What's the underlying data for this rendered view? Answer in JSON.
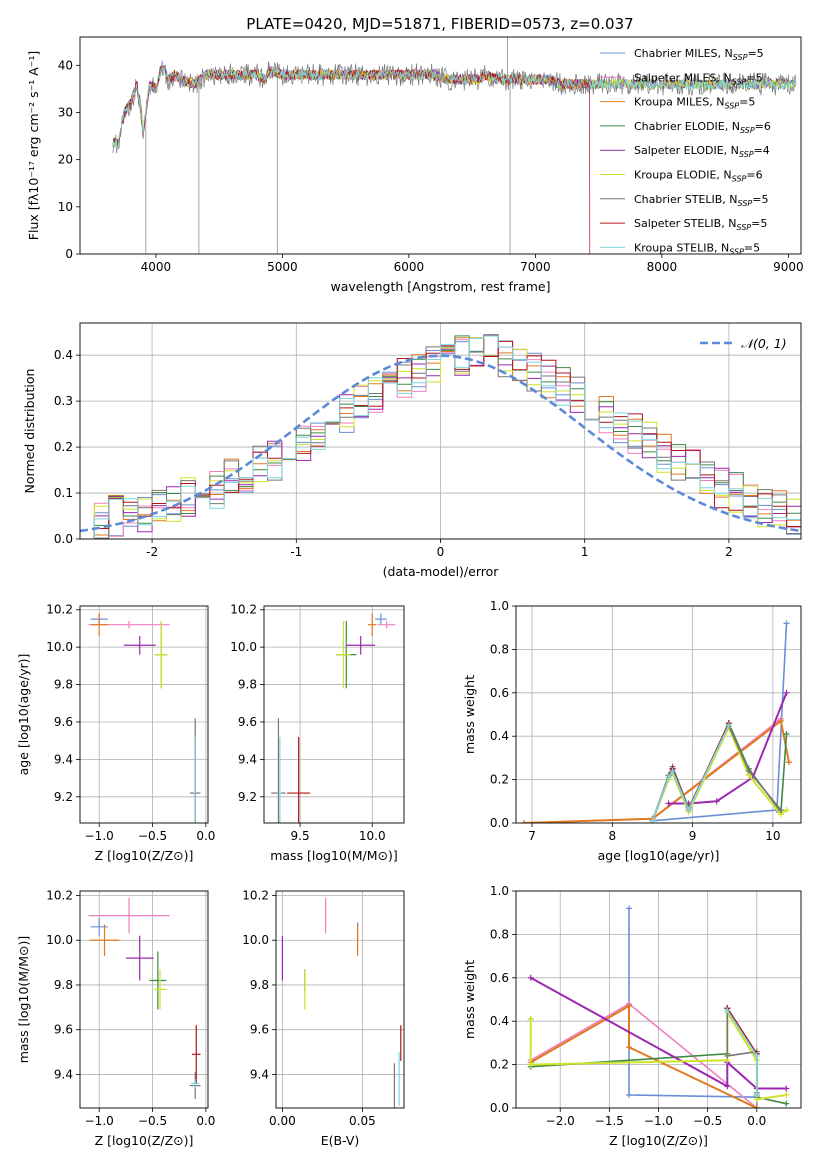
{
  "figure_title": "PLATE=0420, MJD=51871, FIBERID=0573, z=0.037",
  "colors": {
    "series": [
      "#6a8fd8",
      "#f07fc0",
      "#e07a1e",
      "#3f8a46",
      "#9b27b0",
      "#cfe32a",
      "#777777",
      "#b1141a",
      "#7fd6e0"
    ],
    "normal_curve": "#5b8bd6"
  },
  "legend": {
    "prefix": [
      "Chabrier MILES, N",
      "Salpeter MILES, N",
      "Kroupa MILES, N",
      "Chabrier ELODIE, N",
      "Salpeter ELODIE, N",
      "Kroupa ELODIE, N",
      "Chabrier STELIB, N",
      "Salpeter STELIB, N",
      "Kroupa STELIB, N"
    ],
    "sub": "SSP",
    "suffix": [
      "=5",
      "=5",
      "=5",
      "=6",
      "=4",
      "=6",
      "=5",
      "=5",
      "=5"
    ]
  },
  "chart_data": [
    {
      "id": "spectrum",
      "type": "line",
      "xlabel": "wavelength [Angstrom, rest frame]",
      "ylabel": "Flux [fλ10⁻¹⁷ erg cm⁻² s⁻¹ A⁻¹]",
      "xlim": [
        3400,
        9100
      ],
      "ylim": [
        0,
        46
      ],
      "xticks": [
        4000,
        5000,
        6000,
        7000,
        8000,
        9000
      ],
      "yticks": [
        0,
        10,
        20,
        30,
        40
      ],
      "x": [
        3650,
        3700,
        3750,
        3800,
        3850,
        3900,
        3950,
        4000,
        4050,
        4100,
        4150,
        4200,
        4300,
        4400,
        4500,
        4600,
        4700,
        4800,
        4860,
        4900,
        5000,
        5100,
        5200,
        5300,
        5400,
        5500,
        5600,
        5700,
        5800,
        5900,
        6000,
        6100,
        6200,
        6300,
        6400,
        6500,
        6563,
        6600,
        6700,
        6800,
        6900,
        7000,
        7100,
        7200,
        7300,
        7400,
        7500,
        7600,
        7700,
        7800,
        7900,
        8000,
        8200,
        8400,
        8600,
        8800,
        9000,
        9100
      ],
      "y": [
        24,
        23,
        30,
        32,
        36,
        26,
        36,
        35,
        40,
        37,
        38,
        37,
        36,
        38,
        38,
        38,
        38,
        38,
        37,
        39,
        38,
        38,
        38,
        38,
        38,
        38,
        38,
        38,
        38,
        38,
        38,
        38,
        38,
        37,
        37,
        37,
        37,
        38,
        37,
        37,
        37,
        37,
        37,
        36,
        36,
        36,
        36,
        36,
        36,
        36,
        36,
        36,
        36,
        36,
        36,
        36,
        36,
        36
      ],
      "series_note": "all nine model fits overlap the observed spectrum; Salpeter STELIB drops to 0 beyond 7430, Kroupa MILES/Salpeter MILES truncate near 7430",
      "series_names": [
        "Chabrier MILES",
        "Salpeter MILES",
        "Kroupa MILES",
        "Chabrier ELODIE",
        "Salpeter ELODIE",
        "Kroupa ELODIE",
        "Chabrier STELIB",
        "Salpeter STELIB",
        "Kroupa STELIB"
      ],
      "ssp": [
        5,
        5,
        5,
        6,
        4,
        6,
        5,
        5,
        5
      ]
    },
    {
      "id": "residuals",
      "type": "histogram",
      "xlabel": "(data-model)/error",
      "ylabel": "Normed distribution",
      "xlim": [
        -2.5,
        2.5
      ],
      "ylim": [
        0,
        0.47
      ],
      "xticks": [
        -2,
        -1,
        0,
        1,
        2
      ],
      "yticks": [
        0.0,
        0.1,
        0.2,
        0.3,
        0.4
      ],
      "bin_width": 0.1,
      "legend_label": "𝒩(0, 1)",
      "reference": {
        "type": "normal",
        "mean": 0,
        "sigma": 1
      },
      "envelope": [
        0.03,
        0.04,
        0.05,
        0.05,
        0.06,
        0.07,
        0.08,
        0.09,
        0.1,
        0.11,
        0.13,
        0.14,
        0.16,
        0.17,
        0.19,
        0.21,
        0.23,
        0.25,
        0.27,
        0.29,
        0.31,
        0.33,
        0.35,
        0.36,
        0.38,
        0.39,
        0.4,
        0.4,
        0.4,
        0.39,
        0.38,
        0.36,
        0.35,
        0.33,
        0.31,
        0.29,
        0.27,
        0.25,
        0.23,
        0.21,
        0.19,
        0.17,
        0.15,
        0.13,
        0.11,
        0.1,
        0.08,
        0.07,
        0.06,
        0.05
      ]
    },
    {
      "id": "age_vs_Z",
      "type": "errorbar",
      "xlabel": "Z [log10(Z/Z⊙)]",
      "ylabel": "age  [log10(age/yr)]",
      "xlim": [
        -1.18,
        0.02
      ],
      "ylim": [
        9.06,
        10.22
      ],
      "xticks": [
        -1.0,
        -0.5,
        0.0
      ],
      "xticklabels": [
        "−1.0",
        "−0.5",
        "0.0"
      ],
      "yticks": [
        9.2,
        9.4,
        9.6,
        9.8,
        10.0,
        10.2
      ],
      "points": [
        {
          "x": -1.0,
          "y": 10.15,
          "xerr": 0.08,
          "yerr": 0.03
        },
        {
          "x": -0.72,
          "y": 10.12,
          "xerr": 0.38,
          "yerr": 0.02
        },
        {
          "x": -1.0,
          "y": 10.12,
          "xerr": 0.08,
          "yerr": 0.06
        },
        {
          "x": -0.42,
          "y": 9.96,
          "xerr": 0.06,
          "yerr": 0.18
        },
        {
          "x": -0.62,
          "y": 10.01,
          "xerr": 0.15,
          "yerr": 0.05
        },
        {
          "x": -0.42,
          "y": 9.96,
          "xerr": 0.06,
          "yerr": 0.18
        },
        {
          "x": -0.1,
          "y": 9.22,
          "xerr": 0.05,
          "yerr": 0.4
        },
        {
          "x": -0.1,
          "y": 9.22,
          "xerr": 0.01,
          "yerr": 0.3
        },
        {
          "x": -0.1,
          "y": 9.22,
          "xerr": 0.01,
          "yerr": 0.3
        }
      ]
    },
    {
      "id": "age_vs_mass",
      "type": "errorbar",
      "xlabel": "mass [log10(M/M⊙)]",
      "ylabel": "",
      "xlim": [
        9.25,
        10.22
      ],
      "ylim": [
        9.06,
        10.22
      ],
      "xticks": [
        9.5,
        10.0
      ],
      "xticklabels": [
        "9.5",
        "10.0"
      ],
      "yticks": [
        9.2,
        9.4,
        9.6,
        9.8,
        10.0,
        10.2
      ],
      "points": [
        {
          "x": 10.06,
          "y": 10.15,
          "xerr": 0.04,
          "yerr": 0.03
        },
        {
          "x": 10.1,
          "y": 10.12,
          "xerr": 0.06,
          "yerr": 0.02
        },
        {
          "x": 10.0,
          "y": 10.12,
          "xerr": 0.03,
          "yerr": 0.06
        },
        {
          "x": 9.82,
          "y": 9.96,
          "xerr": 0.07,
          "yerr": 0.18
        },
        {
          "x": 9.92,
          "y": 10.01,
          "xerr": 0.1,
          "yerr": 0.05
        },
        {
          "x": 9.8,
          "y": 9.96,
          "xerr": 0.05,
          "yerr": 0.18
        },
        {
          "x": 9.35,
          "y": 9.22,
          "xerr": 0.05,
          "yerr": 0.4
        },
        {
          "x": 9.49,
          "y": 9.22,
          "xerr": 0.08,
          "yerr": 0.3
        },
        {
          "x": 9.36,
          "y": 9.22,
          "xerr": 0.01,
          "yerr": 0.3
        }
      ]
    },
    {
      "id": "weight_vs_age",
      "type": "line",
      "xlabel": "age  [log10(age/yr)]",
      "ylabel": "mass weight",
      "xlim": [
        6.8,
        10.35
      ],
      "ylim": [
        0,
        1.0
      ],
      "xticks": [
        7,
        8,
        9,
        10
      ],
      "xticklabels": [
        "7",
        "8",
        "9",
        "10"
      ],
      "yticks": [
        0.0,
        0.2,
        0.4,
        0.6,
        0.8,
        1.0
      ],
      "series": [
        {
          "x": [
            8.5,
            10.05,
            10.17
          ],
          "y": [
            0.01,
            0.06,
            0.92
          ]
        },
        {
          "x": [
            6.9,
            8.5,
            10.1
          ],
          "y": [
            0.0,
            0.02,
            0.48
          ]
        },
        {
          "x": [
            6.9,
            8.5,
            10.1,
            10.2
          ],
          "y": [
            0.0,
            0.02,
            0.47,
            0.28
          ]
        },
        {
          "x": [
            8.5,
            8.7,
            8.75,
            8.95,
            9.45,
            9.7,
            10.1,
            10.17
          ],
          "y": [
            0.01,
            0.21,
            0.25,
            0.06,
            0.46,
            0.25,
            0.05,
            0.41
          ]
        },
        {
          "x": [
            8.7,
            8.95,
            9.3,
            9.75,
            10.17
          ],
          "y": [
            0.09,
            0.09,
            0.1,
            0.21,
            0.6
          ]
        },
        {
          "x": [
            8.5,
            8.7,
            8.75,
            8.95,
            9.45,
            9.7,
            10.1,
            10.17
          ],
          "y": [
            0.01,
            0.2,
            0.23,
            0.05,
            0.44,
            0.22,
            0.04,
            0.06
          ]
        },
        {
          "x": [
            8.5,
            8.7,
            8.75,
            8.95,
            9.45,
            9.7,
            10.1
          ],
          "y": [
            0.01,
            0.22,
            0.26,
            0.07,
            0.45,
            0.24,
            0.06
          ]
        },
        {
          "x": [
            8.5,
            8.7,
            8.75,
            8.95,
            9.45
          ],
          "y": [
            0.01,
            0.21,
            0.25,
            0.06,
            0.46
          ]
        },
        {
          "x": [
            8.5,
            8.7,
            8.75,
            8.95,
            9.45
          ],
          "y": [
            0.01,
            0.21,
            0.24,
            0.06,
            0.45
          ]
        }
      ]
    },
    {
      "id": "mass_vs_Z",
      "type": "errorbar",
      "xlabel": "Z [log10(Z/Z⊙)]",
      "ylabel": "mass [log10(M/M⊙)]",
      "xlim": [
        -1.18,
        0.02
      ],
      "ylim": [
        9.25,
        10.22
      ],
      "xticks": [
        -1.0,
        -0.5,
        0.0
      ],
      "xticklabels": [
        "−1.0",
        "−0.5",
        "0.0"
      ],
      "yticks": [
        9.4,
        9.6,
        9.8,
        10.0,
        10.2
      ],
      "points": [
        {
          "x": -1.0,
          "y": 10.06,
          "xerr": 0.08,
          "yerr": 0.04
        },
        {
          "x": -0.72,
          "y": 10.11,
          "xerr": 0.38,
          "yerr": 0.08
        },
        {
          "x": -0.95,
          "y": 10.0,
          "xerr": 0.14,
          "yerr": 0.07
        },
        {
          "x": -0.45,
          "y": 9.82,
          "xerr": 0.08,
          "yerr": 0.13
        },
        {
          "x": -0.62,
          "y": 9.92,
          "xerr": 0.13,
          "yerr": 0.1
        },
        {
          "x": -0.43,
          "y": 9.78,
          "xerr": 0.06,
          "yerr": 0.09
        },
        {
          "x": -0.1,
          "y": 9.35,
          "xerr": 0.05,
          "yerr": 0.06
        },
        {
          "x": -0.09,
          "y": 9.49,
          "xerr": 0.04,
          "yerr": 0.13
        },
        {
          "x": -0.1,
          "y": 9.36,
          "xerr": 0.04,
          "yerr": 0.02
        }
      ]
    },
    {
      "id": "mass_vs_ebv",
      "type": "errorbar",
      "xlabel": "E(B-V)",
      "ylabel": "",
      "xlim": [
        -0.004,
        0.076
      ],
      "ylim": [
        9.25,
        10.22
      ],
      "xticks": [
        0.0,
        0.05
      ],
      "xticklabels": [
        "0.00",
        "0.05"
      ],
      "yticks": [
        9.4,
        9.6,
        9.8,
        10.0,
        10.2
      ],
      "points": [
        {
          "x": 0.047,
          "y": 10.04,
          "xerr": 0,
          "yerr": 0.04
        },
        {
          "x": 0.027,
          "y": 10.11,
          "xerr": 0,
          "yerr": 0.08
        },
        {
          "x": 0.047,
          "y": 10.0,
          "xerr": 0,
          "yerr": 0.07
        },
        {
          "x": 0.014,
          "y": 9.82,
          "xerr": 0,
          "yerr": 0.05
        },
        {
          "x": 0.0,
          "y": 9.92,
          "xerr": 0,
          "yerr": 0.1
        },
        {
          "x": 0.014,
          "y": 9.78,
          "xerr": 0,
          "yerr": 0.09
        },
        {
          "x": 0.07,
          "y": 9.35,
          "xerr": 0,
          "yerr": 0.1
        },
        {
          "x": 0.074,
          "y": 9.54,
          "xerr": 0,
          "yerr": 0.08
        },
        {
          "x": 0.073,
          "y": 9.38,
          "xerr": 0,
          "yerr": 0.12
        }
      ]
    },
    {
      "id": "weight_vs_Z",
      "type": "line",
      "xlabel": "Z [log10(Z/Z⊙)]",
      "ylabel": "mass weight",
      "xlim": [
        -2.45,
        0.45
      ],
      "ylim": [
        0,
        1.0
      ],
      "xticks": [
        -2.0,
        -1.5,
        -1.0,
        -0.5,
        0.0
      ],
      "xticklabels": [
        "−2.0",
        "−1.5",
        "−1.0",
        "−0.5",
        "0.0"
      ],
      "yticks": [
        0.0,
        0.2,
        0.4,
        0.6,
        0.8,
        1.0
      ],
      "series": [
        {
          "x": [
            -1.3,
            -1.3,
            0.0,
            0.0
          ],
          "y": [
            0.92,
            0.06,
            0.05,
            0.0
          ]
        },
        {
          "x": [
            -2.3,
            -1.3,
            0.0
          ],
          "y": [
            0.22,
            0.48,
            0.0
          ]
        },
        {
          "x": [
            -2.3,
            -1.3,
            -1.3,
            0.0
          ],
          "y": [
            0.21,
            0.47,
            0.28,
            0.0
          ]
        },
        {
          "x": [
            -2.3,
            -2.3,
            -0.3,
            -0.3,
            0.0,
            0.0,
            0.3
          ],
          "y": [
            0.41,
            0.19,
            0.25,
            0.46,
            0.25,
            0.05,
            0.02
          ]
        },
        {
          "x": [
            -2.3,
            -0.3,
            -0.3,
            0.0,
            0.3
          ],
          "y": [
            0.6,
            0.1,
            0.21,
            0.09,
            0.09
          ]
        },
        {
          "x": [
            -2.3,
            -2.3,
            -0.3,
            -0.3,
            0.0,
            0.0,
            0.3
          ],
          "y": [
            0.41,
            0.2,
            0.22,
            0.44,
            0.22,
            0.04,
            0.06
          ]
        },
        {
          "x": [
            -0.3,
            -0.3,
            0.0,
            0.0
          ],
          "y": [
            0.45,
            0.24,
            0.26,
            0.07
          ]
        },
        {
          "x": [
            -0.3,
            0.0,
            0.0
          ],
          "y": [
            0.46,
            0.25,
            0.06
          ]
        },
        {
          "x": [
            -0.3,
            0.0,
            0.0
          ],
          "y": [
            0.45,
            0.24,
            0.06
          ]
        }
      ]
    }
  ]
}
